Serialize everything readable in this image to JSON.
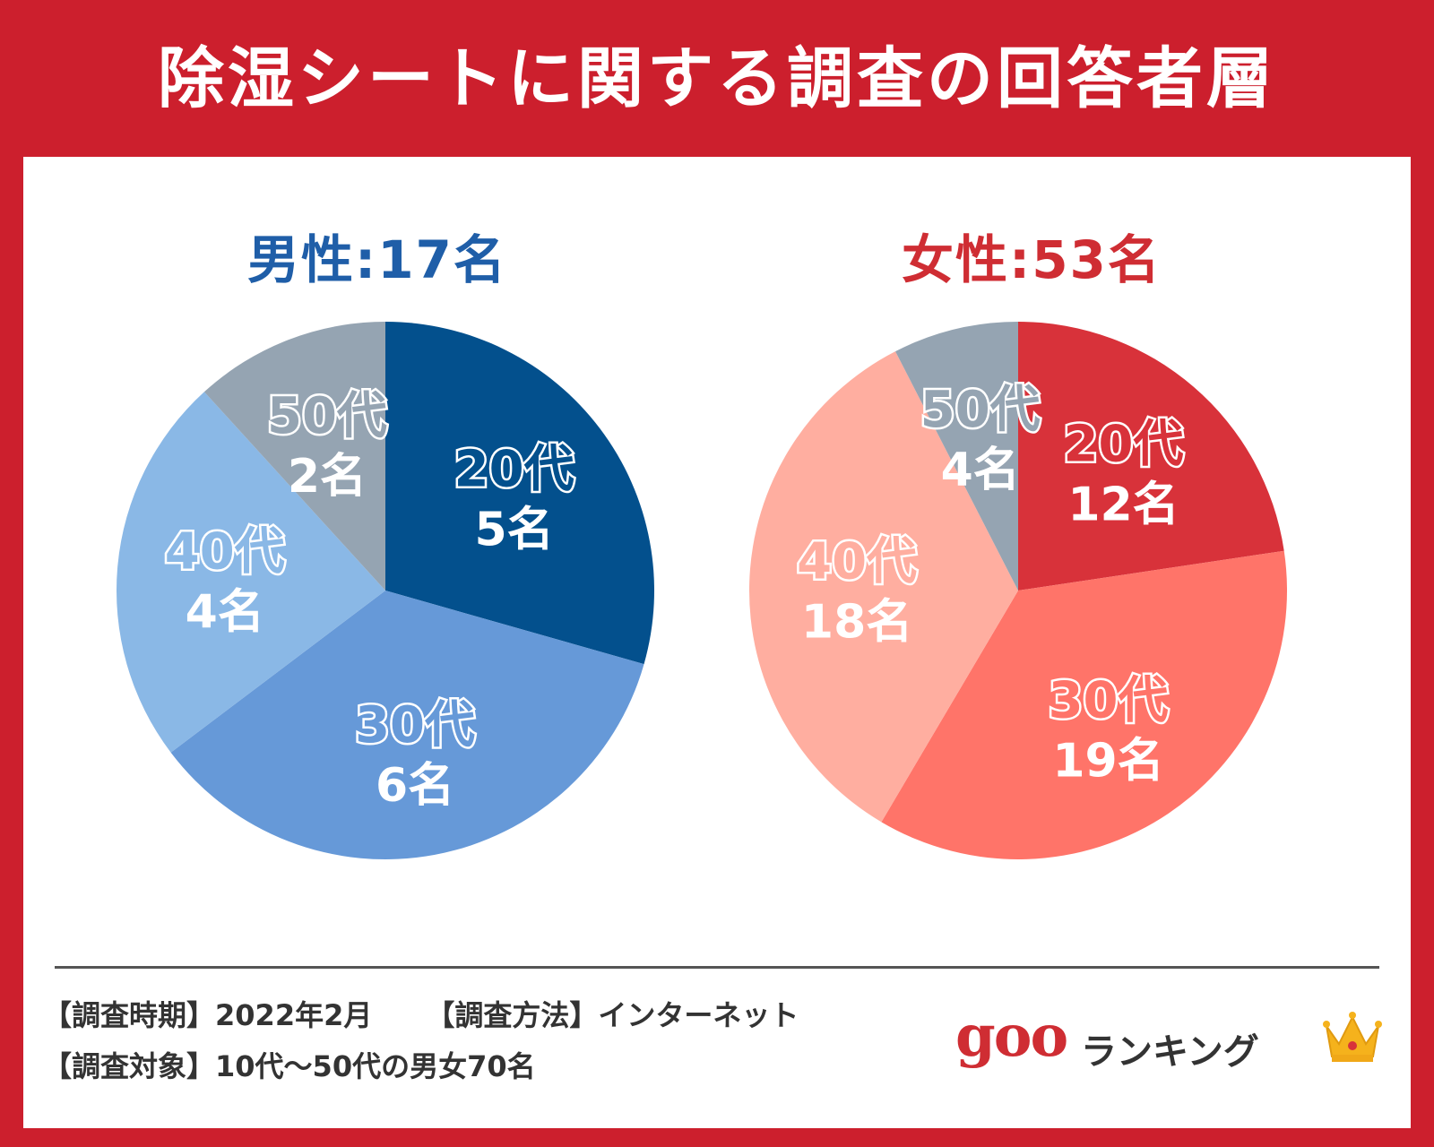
{
  "title": "除湿シートに関する調査の回答者層",
  "colors": {
    "background": "#cc1f2d",
    "male_title": "#1f5ea8",
    "female_title": "#cf2d33"
  },
  "chart_data": [
    {
      "type": "pie",
      "title": "男性:17名",
      "unit": "名",
      "categories": [
        "20代",
        "30代",
        "40代",
        "50代"
      ],
      "values": [
        5,
        6,
        4,
        2
      ],
      "value_labels": [
        "5名",
        "6名",
        "4名",
        "2名"
      ],
      "colors": [
        "#03508d",
        "#6699d8",
        "#8ab8e6",
        "#95a4b2"
      ],
      "label_colors": [
        "#ffffff",
        "#ffffff",
        "#ffffff",
        "#ffffff"
      ]
    },
    {
      "type": "pie",
      "title": "女性:53名",
      "unit": "名",
      "categories": [
        "20代",
        "30代",
        "40代",
        "50代"
      ],
      "values": [
        12,
        19,
        18,
        4
      ],
      "value_labels": [
        "12名",
        "19名",
        "18名",
        "4名"
      ],
      "colors": [
        "#d8323a",
        "#ff7469",
        "#ffaea0",
        "#95a4b2"
      ],
      "label_colors": [
        "#ffffff",
        "#ffffff",
        "#ffffff",
        "#ffffff"
      ]
    }
  ],
  "footer": {
    "period_label": "【調査時期】",
    "period_value": "2022年2月",
    "method_label": "【調査方法】",
    "method_value": "インターネット",
    "target_label": "【調査対象】",
    "target_value": "10代〜50代の男女70名"
  },
  "logo": {
    "brand": "goo",
    "text": "ランキング",
    "icon": "crown-icon"
  }
}
